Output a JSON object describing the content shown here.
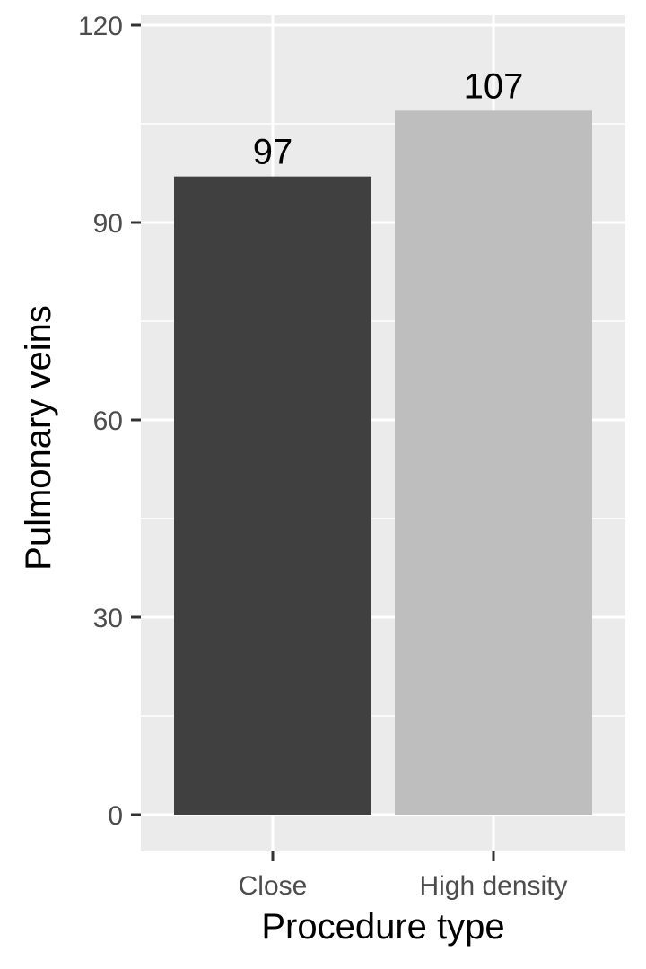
{
  "chart_data": {
    "type": "bar",
    "title": "",
    "xlabel": "Procedure type",
    "ylabel": "Pulmonary veins",
    "categories": [
      "Close",
      "High density"
    ],
    "values": [
      97,
      107
    ],
    "data_labels": [
      "97",
      "107"
    ],
    "bar_colors": [
      "#404040",
      "#bebebe"
    ],
    "ylim": [
      0,
      120
    ],
    "y_ticks": [
      0,
      30,
      60,
      90,
      120
    ],
    "y_tick_labels": [
      "0",
      "30",
      "60",
      "90",
      "120"
    ],
    "grid": true,
    "legend": "none",
    "panel_background": "#ebebeb",
    "gridline_color": "#ffffff"
  }
}
